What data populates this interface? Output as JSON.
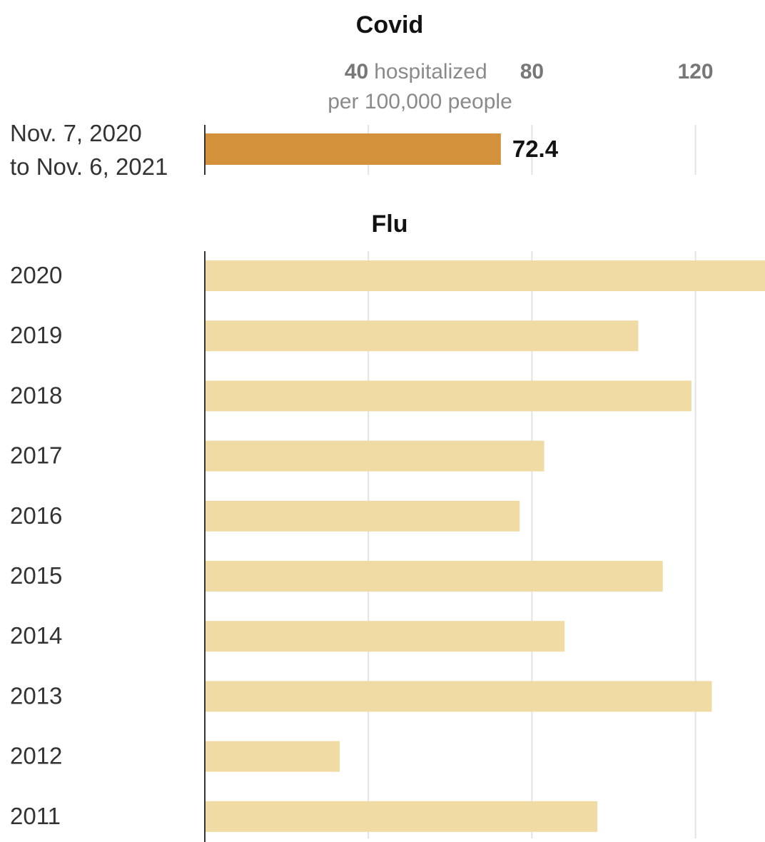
{
  "chart_data": [
    {
      "type": "bar",
      "orientation": "horizontal",
      "title": "Covid",
      "categories": [
        "Nov. 7, 2020 to Nov. 6, 2021"
      ],
      "category_lines": [
        [
          "Nov. 7, 2020",
          "to Nov. 6, 2021"
        ]
      ],
      "values": [
        72.4
      ],
      "value_labels": [
        "72.4"
      ],
      "xlim": [
        0,
        137
      ],
      "xticks": [
        40,
        80,
        120
      ],
      "xtick_labels": [
        "40",
        "80",
        "120"
      ],
      "x_unit_label": [
        "hospitalized",
        "per 100,000 people"
      ],
      "color": "#d3913b",
      "grid": true
    },
    {
      "type": "bar",
      "orientation": "horizontal",
      "title": "Flu",
      "categories": [
        "2020",
        "2019",
        "2018",
        "2017",
        "2016",
        "2015",
        "2014",
        "2013",
        "2012",
        "2011"
      ],
      "values": [
        137,
        106,
        119,
        83,
        77,
        112,
        88,
        124,
        33,
        96
      ],
      "xlim": [
        0,
        137
      ],
      "xticks": [
        40,
        80,
        120
      ],
      "color": "#efdba3",
      "grid": true
    }
  ]
}
